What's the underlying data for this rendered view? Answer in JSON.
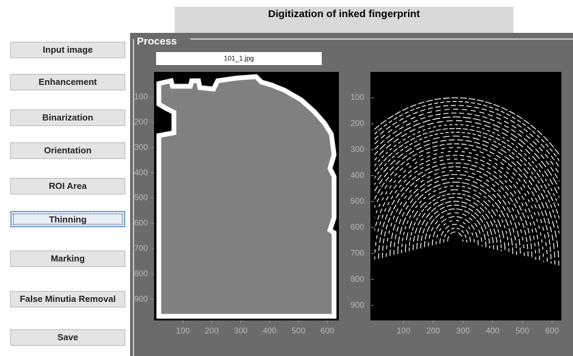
{
  "header": {
    "title": "Digitization of inked fingerprint"
  },
  "buttons": [
    "Input image",
    "Enhancement",
    "Binarization",
    "Orientation",
    "ROI Area",
    "Thinning",
    "Marking",
    "False Minutia Removal",
    "Save"
  ],
  "panel": {
    "title": "Process",
    "file_name": "101_1.jpg"
  },
  "axes": [
    {
      "xticks": [
        100,
        200,
        300,
        400,
        500,
        600
      ],
      "yticks": [
        100,
        200,
        300,
        400,
        500,
        600,
        700,
        800,
        900
      ]
    },
    {
      "xticks": [
        100,
        200,
        300,
        400,
        500,
        600
      ],
      "yticks": [
        100,
        200,
        300,
        400,
        500,
        600,
        700,
        800,
        900
      ]
    }
  ]
}
